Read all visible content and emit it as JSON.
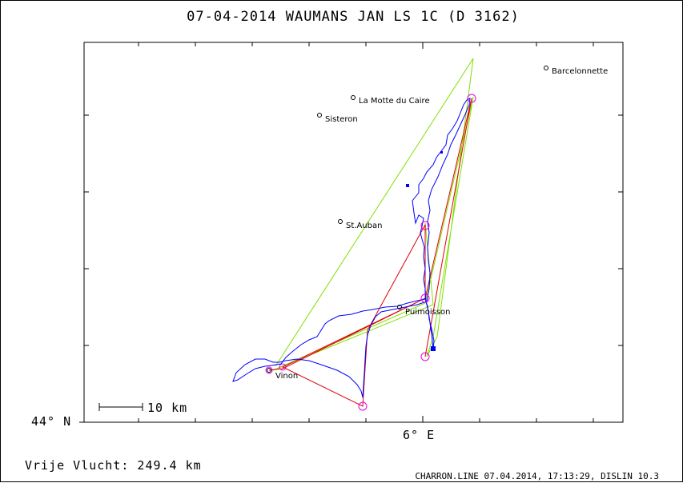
{
  "title": "07-04-2014   WAUMANS JAN   LS 1C (D 3162)",
  "axes": {
    "lat_label": "44° N",
    "lon_label": "6° E"
  },
  "scale_bar": {
    "label": "10 km"
  },
  "distance": "Vrije Vlucht:  249.4 km",
  "footer": "CHARRON.LINE 07.04.2014, 17:13:29, DISLIN 10.3",
  "places": [
    {
      "name": "Barcelonnette"
    },
    {
      "name": "La Motte du Caire"
    },
    {
      "name": "Sisteron"
    },
    {
      "name": "St.Auban"
    },
    {
      "name": "Puimoisson"
    },
    {
      "name": "Vinon"
    }
  ],
  "colors": {
    "track": "#0000ff",
    "task_red": "#e00000",
    "task_green": "#80e000",
    "turnpoint": "#e000e0",
    "frame": "#000000"
  }
}
